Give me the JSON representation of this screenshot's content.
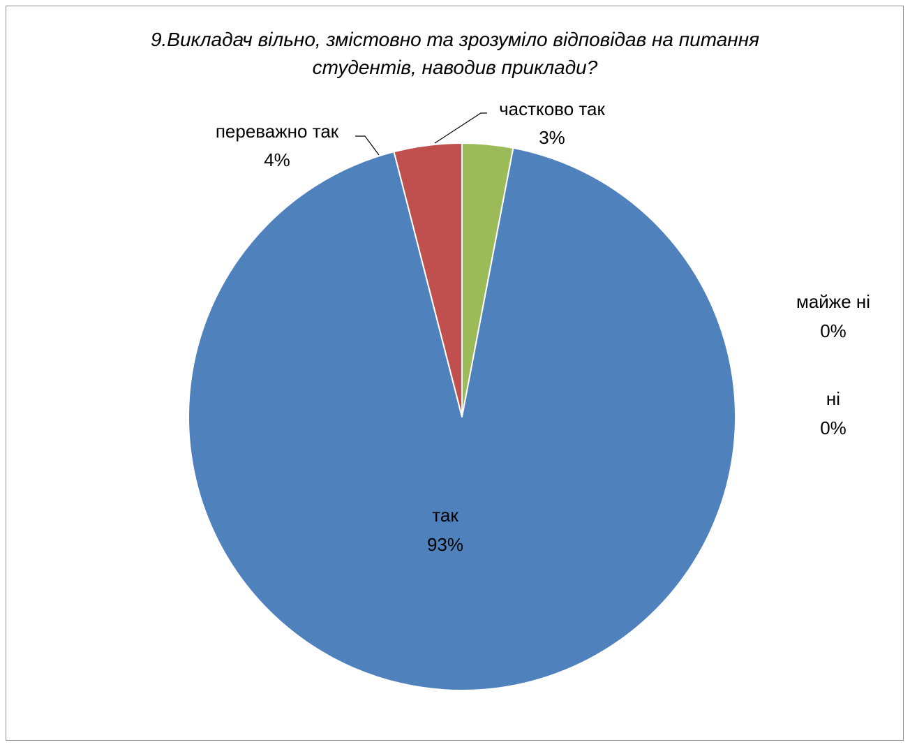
{
  "chart_data": {
    "type": "pie",
    "title_lines": [
      "9.Викладач вільно, змістовно та зрозуміло відповідав на питання",
      "студентів, наводив приклади?"
    ],
    "slices": [
      {
        "name": "частково так",
        "value": 3,
        "label": "3%",
        "color": "#9bbb59"
      },
      {
        "name": "майже ні",
        "value": 0,
        "label": "0%",
        "color": "#8064a2"
      },
      {
        "name": "ні",
        "value": 0,
        "label": "0%",
        "color": "#4bacc6"
      },
      {
        "name": "так",
        "value": 93,
        "label": "93%",
        "color": "#4f81bd"
      },
      {
        "name": "переважно так",
        "value": 4,
        "label": "4%",
        "color": "#c0504d"
      }
    ],
    "legend": "none",
    "slice_border_color": "#ffffff"
  }
}
